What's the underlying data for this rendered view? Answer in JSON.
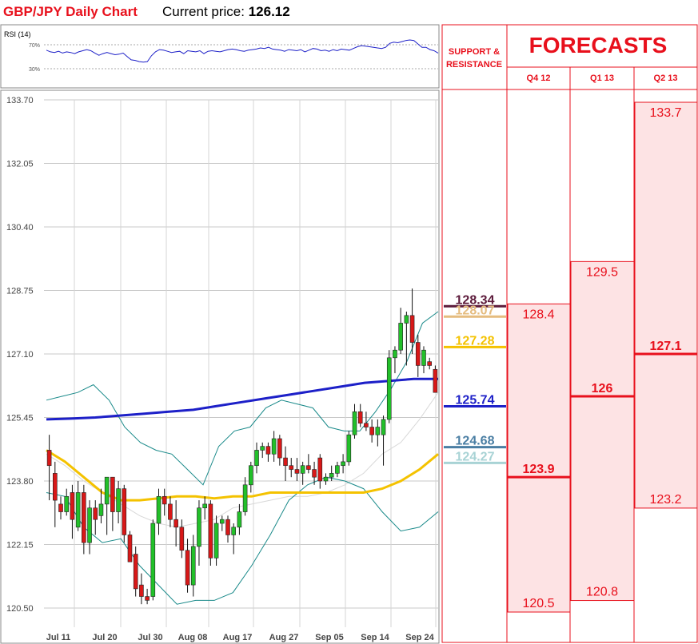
{
  "header": {
    "title": "GBP/JPY Daily Chart",
    "price_label": "Current price:",
    "price_value": "126.12"
  },
  "rsi": {
    "label": "RSI (14)",
    "level_high": "70%",
    "level_low": "30%",
    "values": [
      61,
      58,
      57,
      59,
      56,
      58,
      57,
      55,
      58,
      60,
      62,
      60,
      56,
      52,
      55,
      57,
      55,
      53,
      54,
      56,
      50,
      44,
      43,
      41,
      40,
      41,
      51,
      58,
      62,
      61,
      59,
      57,
      58,
      59,
      55,
      60,
      59,
      58,
      60,
      55,
      59,
      60,
      59,
      58,
      60,
      62,
      63,
      62,
      60,
      59,
      61,
      62,
      63,
      65,
      64,
      66,
      63,
      62,
      61,
      59,
      62,
      61,
      60,
      62,
      58,
      61,
      64,
      63,
      60,
      61,
      59,
      62,
      60,
      63,
      62,
      61,
      64,
      67,
      69,
      68,
      67,
      66,
      65,
      64,
      66,
      73,
      75,
      74,
      76,
      78,
      79,
      78,
      72,
      66,
      66,
      62,
      60,
      56
    ]
  },
  "chart_data": {
    "type": "candlestick",
    "y_ticks": [
      "133.70",
      "132.05",
      "130.40",
      "128.75",
      "127.10",
      "125.45",
      "123.80",
      "122.15",
      "120.50"
    ],
    "ylim": [
      120.5,
      133.7
    ],
    "x_labels": [
      "Jul 11",
      "Jul 20",
      "Jul 30",
      "Aug 08",
      "Aug 17",
      "Aug 27",
      "Sep 05",
      "Sep 14",
      "Sep 24"
    ],
    "candles": [
      {
        "o": 124.6,
        "h": 125.0,
        "l": 123.3,
        "c": 124.2
      },
      {
        "o": 124.0,
        "h": 124.3,
        "l": 122.6,
        "c": 123.3
      },
      {
        "o": 123.2,
        "h": 123.4,
        "l": 122.8,
        "c": 123.0
      },
      {
        "o": 123.0,
        "h": 123.6,
        "l": 122.9,
        "c": 123.4
      },
      {
        "o": 123.5,
        "h": 123.7,
        "l": 122.3,
        "c": 122.8
      },
      {
        "o": 122.6,
        "h": 123.8,
        "l": 122.5,
        "c": 123.5
      },
      {
        "o": 123.5,
        "h": 123.7,
        "l": 121.9,
        "c": 122.2
      },
      {
        "o": 122.2,
        "h": 123.3,
        "l": 121.9,
        "c": 123.1
      },
      {
        "o": 123.1,
        "h": 123.3,
        "l": 122.4,
        "c": 122.8
      },
      {
        "o": 122.9,
        "h": 123.6,
        "l": 122.7,
        "c": 123.2
      },
      {
        "o": 123.2,
        "h": 123.9,
        "l": 122.4,
        "c": 123.9
      },
      {
        "o": 123.9,
        "h": 123.9,
        "l": 122.5,
        "c": 123.0
      },
      {
        "o": 123.0,
        "h": 123.8,
        "l": 122.7,
        "c": 123.6
      },
      {
        "o": 123.6,
        "h": 123.7,
        "l": 122.2,
        "c": 122.4
      },
      {
        "o": 122.4,
        "h": 122.5,
        "l": 121.8,
        "c": 121.7
      },
      {
        "o": 121.9,
        "h": 122.1,
        "l": 120.8,
        "c": 121.0
      },
      {
        "o": 121.1,
        "h": 121.4,
        "l": 120.6,
        "c": 120.8
      },
      {
        "o": 120.8,
        "h": 121.0,
        "l": 120.6,
        "c": 120.7
      },
      {
        "o": 120.8,
        "h": 122.8,
        "l": 120.7,
        "c": 122.7
      },
      {
        "o": 122.7,
        "h": 123.6,
        "l": 122.4,
        "c": 123.4
      },
      {
        "o": 123.4,
        "h": 123.6,
        "l": 122.9,
        "c": 123.2
      },
      {
        "o": 123.2,
        "h": 123.4,
        "l": 122.6,
        "c": 122.8
      },
      {
        "o": 122.8,
        "h": 123.3,
        "l": 122.1,
        "c": 122.6
      },
      {
        "o": 122.6,
        "h": 122.8,
        "l": 121.8,
        "c": 122.0
      },
      {
        "o": 122.0,
        "h": 122.3,
        "l": 120.9,
        "c": 121.1
      },
      {
        "o": 121.1,
        "h": 122.4,
        "l": 120.8,
        "c": 122.1
      },
      {
        "o": 122.1,
        "h": 123.3,
        "l": 121.6,
        "c": 123.1
      },
      {
        "o": 123.1,
        "h": 123.4,
        "l": 122.8,
        "c": 123.2
      },
      {
        "o": 123.2,
        "h": 123.3,
        "l": 121.6,
        "c": 121.8
      },
      {
        "o": 121.8,
        "h": 122.9,
        "l": 121.6,
        "c": 122.7
      },
      {
        "o": 122.7,
        "h": 122.9,
        "l": 122.5,
        "c": 122.8
      },
      {
        "o": 122.8,
        "h": 122.9,
        "l": 122.2,
        "c": 122.4
      },
      {
        "o": 122.4,
        "h": 122.7,
        "l": 121.9,
        "c": 122.6
      },
      {
        "o": 122.6,
        "h": 123.2,
        "l": 122.4,
        "c": 123.0
      },
      {
        "o": 123.0,
        "h": 123.9,
        "l": 122.9,
        "c": 123.7
      },
      {
        "o": 123.7,
        "h": 124.3,
        "l": 123.5,
        "c": 124.2
      },
      {
        "o": 124.2,
        "h": 124.8,
        "l": 124.0,
        "c": 124.6
      },
      {
        "o": 124.6,
        "h": 124.8,
        "l": 124.4,
        "c": 124.7
      },
      {
        "o": 124.7,
        "h": 124.8,
        "l": 124.3,
        "c": 124.5
      },
      {
        "o": 124.5,
        "h": 125.1,
        "l": 124.3,
        "c": 124.9
      },
      {
        "o": 124.9,
        "h": 125.0,
        "l": 124.2,
        "c": 124.4
      },
      {
        "o": 124.4,
        "h": 124.7,
        "l": 123.8,
        "c": 124.2
      },
      {
        "o": 124.2,
        "h": 124.4,
        "l": 123.9,
        "c": 124.1
      },
      {
        "o": 124.1,
        "h": 124.4,
        "l": 123.8,
        "c": 124.0
      },
      {
        "o": 124.0,
        "h": 124.3,
        "l": 123.7,
        "c": 124.2
      },
      {
        "o": 124.2,
        "h": 124.5,
        "l": 124.0,
        "c": 124.1
      },
      {
        "o": 124.1,
        "h": 124.3,
        "l": 123.7,
        "c": 123.9
      },
      {
        "o": 124.4,
        "h": 124.5,
        "l": 123.6,
        "c": 123.8
      },
      {
        "o": 123.8,
        "h": 124.0,
        "l": 123.7,
        "c": 123.9
      },
      {
        "o": 123.9,
        "h": 124.2,
        "l": 123.8,
        "c": 124.0
      },
      {
        "o": 124.0,
        "h": 124.3,
        "l": 123.9,
        "c": 124.2
      },
      {
        "o": 124.2,
        "h": 124.5,
        "l": 124.0,
        "c": 124.3
      },
      {
        "o": 124.3,
        "h": 125.1,
        "l": 124.2,
        "c": 125.0
      },
      {
        "o": 125.0,
        "h": 125.8,
        "l": 124.9,
        "c": 125.6
      },
      {
        "o": 125.6,
        "h": 125.8,
        "l": 125.2,
        "c": 125.3
      },
      {
        "o": 125.3,
        "h": 125.6,
        "l": 125.1,
        "c": 125.2
      },
      {
        "o": 125.2,
        "h": 125.4,
        "l": 124.8,
        "c": 125.0
      },
      {
        "o": 125.0,
        "h": 125.4,
        "l": 124.7,
        "c": 125.2
      },
      {
        "o": 125.0,
        "h": 125.5,
        "l": 124.2,
        "c": 125.4
      },
      {
        "o": 125.4,
        "h": 127.2,
        "l": 125.3,
        "c": 127.0
      },
      {
        "o": 127.0,
        "h": 127.3,
        "l": 126.6,
        "c": 127.2
      },
      {
        "o": 127.2,
        "h": 128.3,
        "l": 127.1,
        "c": 127.9
      },
      {
        "o": 127.9,
        "h": 128.2,
        "l": 126.8,
        "c": 128.1
      },
      {
        "o": 128.1,
        "h": 128.8,
        "l": 127.1,
        "c": 127.4
      },
      {
        "o": 127.4,
        "h": 127.6,
        "l": 126.5,
        "c": 126.8
      },
      {
        "o": 126.8,
        "h": 127.3,
        "l": 126.6,
        "c": 127.2
      },
      {
        "o": 126.9,
        "h": 127.0,
        "l": 126.7,
        "c": 126.8
      },
      {
        "o": 126.7,
        "h": 126.8,
        "l": 126.2,
        "c": 126.1
      }
    ],
    "sma_blue": [
      125.4,
      125.42,
      125.45,
      125.5,
      125.55,
      125.6,
      125.65,
      125.75,
      125.85,
      125.95,
      126.05,
      126.15,
      126.25,
      126.35,
      126.4,
      126.45,
      126.45
    ],
    "sma_yellow": [
      124.6,
      124.3,
      123.9,
      123.5,
      123.3,
      123.3,
      123.35,
      123.4,
      123.4,
      123.35,
      123.4,
      123.4,
      123.5,
      123.5,
      123.5,
      123.5,
      123.5,
      123.5,
      123.6,
      123.8,
      124.1,
      124.5
    ],
    "bb_upper": [
      125.9,
      126.0,
      126.1,
      126.3,
      125.9,
      125.2,
      124.8,
      124.6,
      124.5,
      124.1,
      123.7,
      124.7,
      125.1,
      125.2,
      125.7,
      125.9,
      125.8,
      125.7,
      125.2,
      125.1,
      125.1,
      125.6,
      126.2,
      126.9,
      127.9,
      128.2
    ],
    "bb_lower": [
      123.5,
      123.4,
      122.6,
      122.2,
      122.3,
      121.6,
      121.1,
      120.6,
      120.7,
      120.7,
      120.9,
      121.6,
      122.4,
      123.3,
      123.7,
      123.9,
      123.8,
      123.6,
      123.0,
      122.5,
      122.6,
      123.0
    ],
    "bb_mid": [
      124.5,
      124.2,
      123.8,
      123.5,
      123.2,
      122.9,
      122.7,
      122.6,
      122.7,
      122.8,
      123.1,
      123.2,
      123.3,
      123.4,
      123.4,
      123.5,
      123.7,
      124.0,
      124.5,
      124.8,
      125.4,
      126.1
    ],
    "support_resistance": [
      {
        "value": "128.34",
        "price": 128.34,
        "color": "#5c1a3a"
      },
      {
        "value": "128.07",
        "price": 128.07,
        "color": "#e5bc7f"
      },
      {
        "value": "127.28",
        "price": 127.28,
        "color": "#f4c200"
      },
      {
        "value": "125.74",
        "price": 125.74,
        "color": "#1d20c8"
      },
      {
        "value": "124.68",
        "price": 124.68,
        "color": "#4a7ea3"
      },
      {
        "value": "124.27",
        "price": 124.27,
        "color": "#a8d3d5"
      }
    ],
    "forecasts": [
      {
        "quarter": "Q4 12",
        "high": "128.4",
        "mid": "123.9",
        "low": "120.5",
        "high_v": 128.4,
        "mid_v": 123.9,
        "low_v": 120.5
      },
      {
        "quarter": "Q1 13",
        "high": "129.5",
        "mid": "126",
        "low": "120.8",
        "high_v": 129.5,
        "mid_v": 126.0,
        "low_v": 120.8
      },
      {
        "quarter": "Q2 13",
        "high": "133.7",
        "mid": "127.1",
        "low": "123.2",
        "high_v": 133.7,
        "mid_v": 127.1,
        "low_v": 123.2
      }
    ]
  },
  "panel": {
    "sr_title_1": "SUPPORT &",
    "sr_title_2": "RESISTANCE",
    "forecasts_title": "FORECASTS"
  },
  "colors": {
    "red": "#e8101c",
    "up_candle": "#22c02a",
    "down_candle": "#d81818",
    "ma_blue": "#1d20c8",
    "ma_yellow": "#f4c200",
    "bollinger": "#1a8a8a",
    "forecast_fill": "#fde3e4"
  }
}
